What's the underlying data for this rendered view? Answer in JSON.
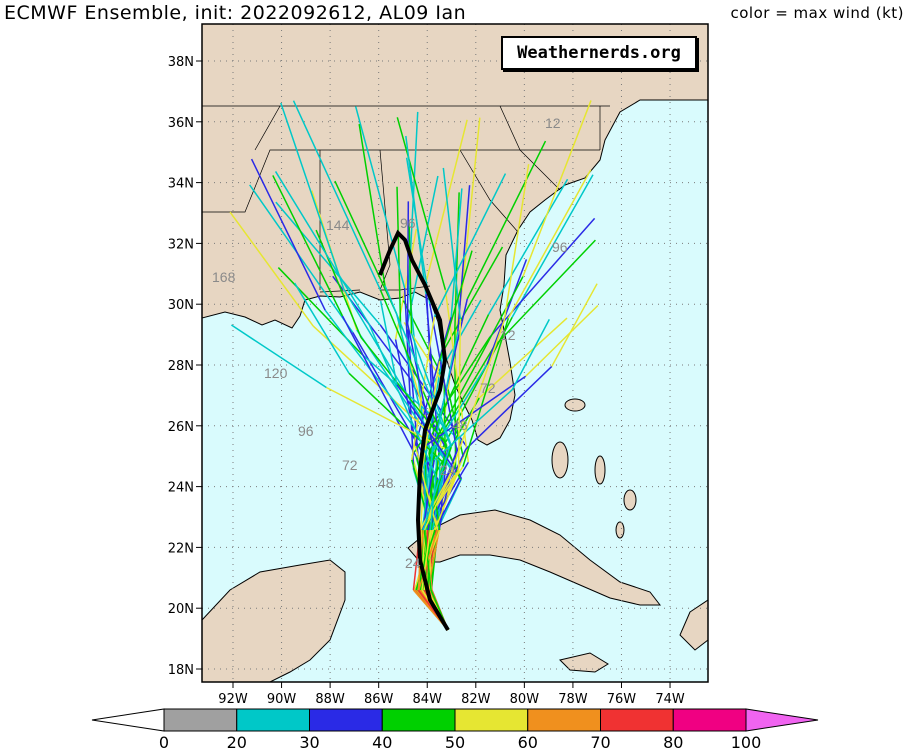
{
  "header": {
    "title": "ECMWF Ensemble, init: 2022092612, AL09 Ian",
    "units": "color = max wind (kt)"
  },
  "watermark": "Weathernerds.org",
  "map": {
    "region": "Gulf of Mexico / Southeastern US / Florida / Cuba",
    "lon_range": [
      -93,
      -73.5
    ],
    "lat_range": [
      17.8,
      39
    ],
    "lat_ticks": [
      "18N",
      "20N",
      "22N",
      "24N",
      "26N",
      "28N",
      "30N",
      "32N",
      "34N",
      "36N",
      "38N"
    ],
    "lon_ticks": [
      "92W",
      "90W",
      "88W",
      "86W",
      "84W",
      "82W",
      "80W",
      "78W",
      "76W",
      "74W"
    ],
    "colors": {
      "ocean": "#d9fbfd",
      "land": "#e7d6c2",
      "border": "#000000"
    }
  },
  "track_labels": [
    "168",
    "144",
    "120",
    "96",
    "72",
    "48",
    "24",
    "12",
    "96",
    "72",
    "48",
    "24",
    "12",
    "96"
  ],
  "wind_scale": {
    "ticks": [
      "0",
      "20",
      "30",
      "40",
      "50",
      "60",
      "70",
      "80",
      "100"
    ],
    "colors": [
      "#ffffff",
      "#a0a0a0",
      "#00c8c8",
      "#2a2ae6",
      "#00d000",
      "#e6e632",
      "#f0901e",
      "#f03232",
      "#f00082",
      "#f064f0"
    ]
  }
}
